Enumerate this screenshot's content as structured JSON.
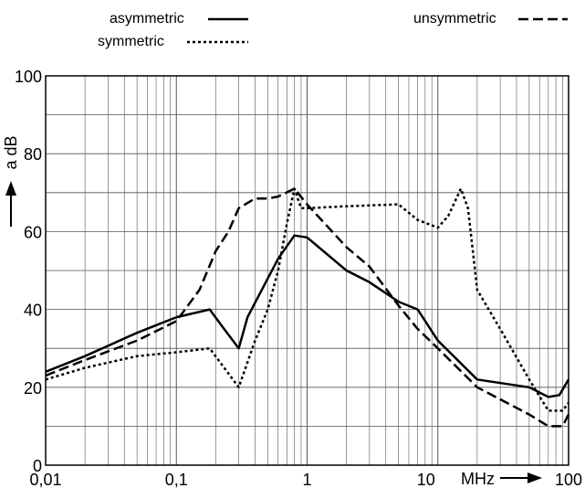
{
  "chart_data": {
    "type": "line",
    "title": "",
    "xlabel": "MHz",
    "ylabel": "a dB",
    "xscale": "log",
    "xlim": [
      0.01,
      100
    ],
    "ylim": [
      0,
      100
    ],
    "grid": true,
    "legend_position": "top",
    "x_tick_labels": [
      "0,01",
      "0,1",
      "1",
      "10",
      "100"
    ],
    "y_tick_labels": [
      "0",
      "20",
      "40",
      "60",
      "80",
      "100"
    ],
    "series": [
      {
        "name": "asymmetric",
        "line_style": "solid",
        "color": "#000000",
        "points": [
          [
            0.01,
            24
          ],
          [
            0.02,
            28
          ],
          [
            0.05,
            34
          ],
          [
            0.1,
            38
          ],
          [
            0.18,
            40
          ],
          [
            0.22,
            36
          ],
          [
            0.3,
            30
          ],
          [
            0.35,
            38
          ],
          [
            0.45,
            45
          ],
          [
            0.6,
            53
          ],
          [
            0.8,
            59
          ],
          [
            1.0,
            58.5
          ],
          [
            2,
            50
          ],
          [
            3,
            47
          ],
          [
            5,
            42
          ],
          [
            7,
            40
          ],
          [
            10,
            32
          ],
          [
            20,
            22
          ],
          [
            50,
            20
          ],
          [
            70,
            17.5
          ],
          [
            85,
            18
          ],
          [
            100,
            22
          ]
        ]
      },
      {
        "name": "symmetric",
        "line_style": "dotted",
        "color": "#000000",
        "points": [
          [
            0.01,
            22
          ],
          [
            0.02,
            25
          ],
          [
            0.05,
            28
          ],
          [
            0.1,
            29
          ],
          [
            0.18,
            30
          ],
          [
            0.3,
            20
          ],
          [
            0.4,
            32
          ],
          [
            0.5,
            40
          ],
          [
            0.6,
            50
          ],
          [
            0.7,
            62
          ],
          [
            0.8,
            71
          ],
          [
            0.9,
            66
          ],
          [
            1.0,
            66
          ],
          [
            2,
            66.5
          ],
          [
            5,
            67
          ],
          [
            7,
            63
          ],
          [
            10,
            61
          ],
          [
            12,
            64
          ],
          [
            15,
            71
          ],
          [
            17,
            66
          ],
          [
            20,
            45
          ],
          [
            30,
            35
          ],
          [
            50,
            22
          ],
          [
            70,
            14
          ],
          [
            90,
            14
          ],
          [
            100,
            16
          ]
        ]
      },
      {
        "name": "unsymmetric",
        "line_style": "dashed",
        "color": "#000000",
        "points": [
          [
            0.01,
            23
          ],
          [
            0.02,
            27
          ],
          [
            0.05,
            32
          ],
          [
            0.1,
            37
          ],
          [
            0.15,
            45
          ],
          [
            0.2,
            55
          ],
          [
            0.25,
            60
          ],
          [
            0.3,
            66
          ],
          [
            0.4,
            68.5
          ],
          [
            0.5,
            68.5
          ],
          [
            0.6,
            69
          ],
          [
            0.8,
            71
          ],
          [
            1.0,
            67
          ],
          [
            2,
            56
          ],
          [
            3,
            51
          ],
          [
            5,
            41
          ],
          [
            7,
            35
          ],
          [
            10,
            30
          ],
          [
            20,
            20
          ],
          [
            50,
            13
          ],
          [
            70,
            10
          ],
          [
            90,
            10
          ],
          [
            100,
            13
          ]
        ]
      }
    ]
  },
  "legend": {
    "asymmetric_label": "asymmetric",
    "symmetric_label": "symmetric",
    "unsymmetric_label": "unsymmetric"
  },
  "axis": {
    "ylabel": "a dB",
    "xunit": "MHz"
  }
}
